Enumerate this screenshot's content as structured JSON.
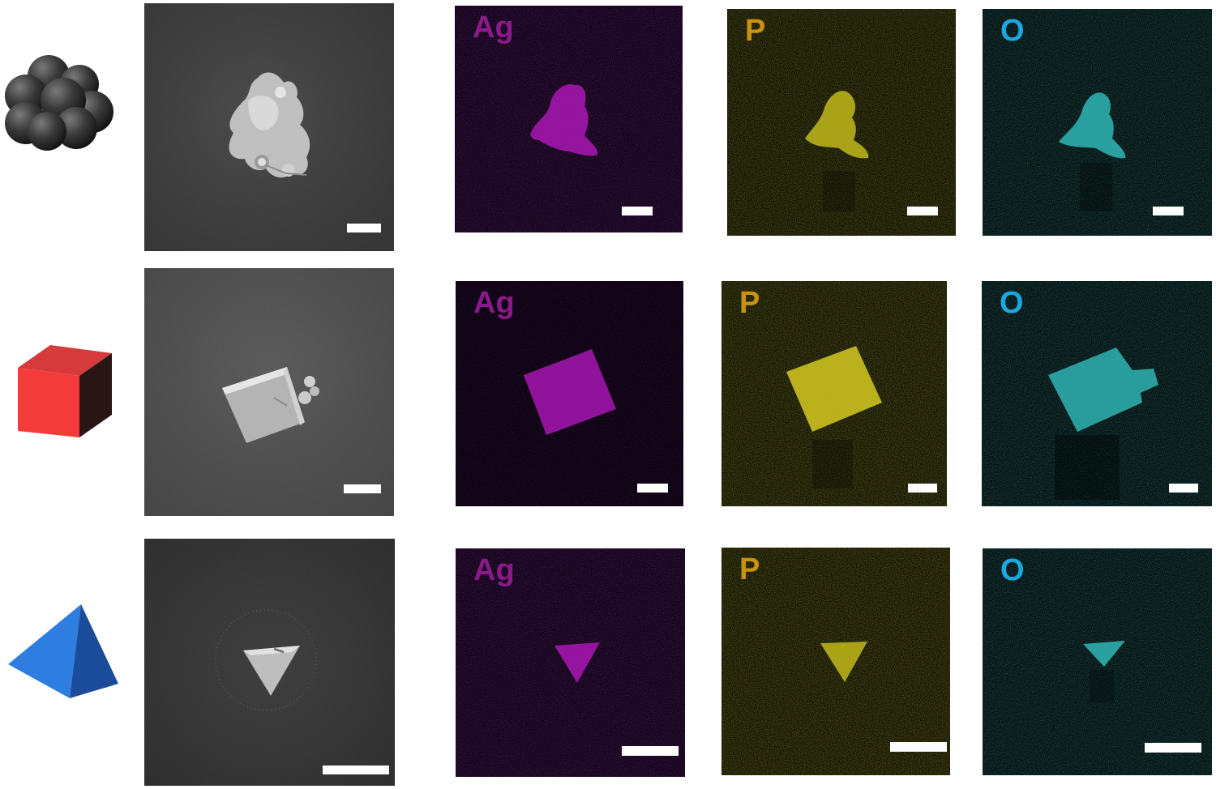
{
  "colors": {
    "ag_label": "#8a1a8a",
    "p_label": "#c8920f",
    "o_label": "#1aa8e0",
    "ag_signal": "#9b14a6",
    "p_signal": "#a8a21a",
    "o_signal": "#2aa7a6"
  },
  "rows": [
    {
      "shape": "cluster",
      "icon": "sphere-cluster-icon",
      "maps": [
        {
          "element": "Ag"
        },
        {
          "element": "P"
        },
        {
          "element": "O"
        }
      ]
    },
    {
      "shape": "cube",
      "icon": "red-cube-icon",
      "maps": [
        {
          "element": "Ag"
        },
        {
          "element": "P"
        },
        {
          "element": "O"
        }
      ]
    },
    {
      "shape": "tetrahedron",
      "icon": "blue-tetrahedron-icon",
      "maps": [
        {
          "element": "Ag"
        },
        {
          "element": "P"
        },
        {
          "element": "O"
        }
      ]
    }
  ]
}
